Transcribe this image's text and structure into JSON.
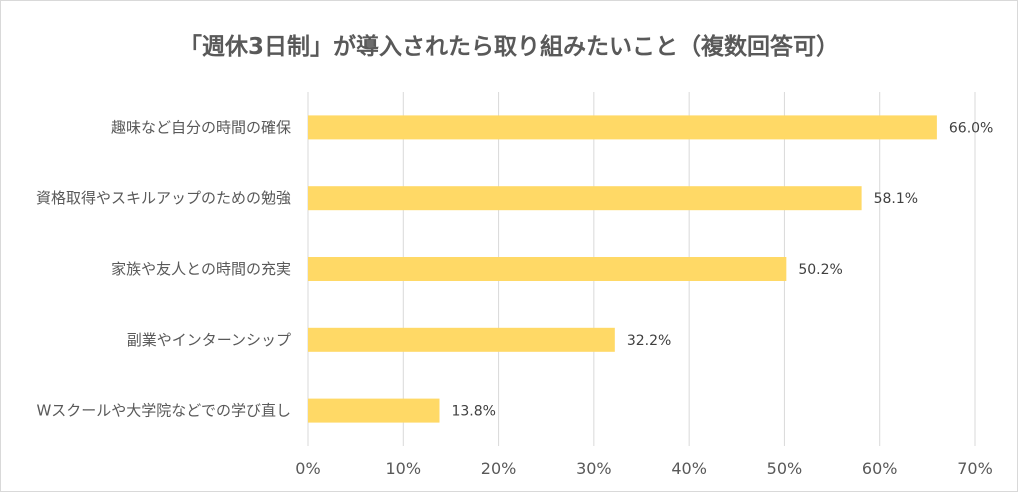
{
  "chart_data": {
    "type": "bar",
    "orientation": "horizontal",
    "title": "「週休3日制」が導入されたら取り組みたいこと（複数回答可）",
    "categories": [
      "趣味など自分の時間の確保",
      "資格取得やスキルアップのための勉強",
      "家族や友人との時間の充実",
      "副業やインターンシップ",
      "Wスクールや大学院などでの学び直し"
    ],
    "values": [
      66.0,
      58.1,
      50.2,
      32.2,
      13.8
    ],
    "value_labels": [
      "66.0%",
      "58.1%",
      "50.2%",
      "32.2%",
      "13.8%"
    ],
    "x_ticks": [
      "0%",
      "10%",
      "20%",
      "30%",
      "40%",
      "50%",
      "60%",
      "70%"
    ],
    "xlim": [
      0,
      70
    ],
    "grid": true,
    "legend": "none",
    "bar_color": "#FFD966",
    "grid_color": "#d9d9d9"
  }
}
